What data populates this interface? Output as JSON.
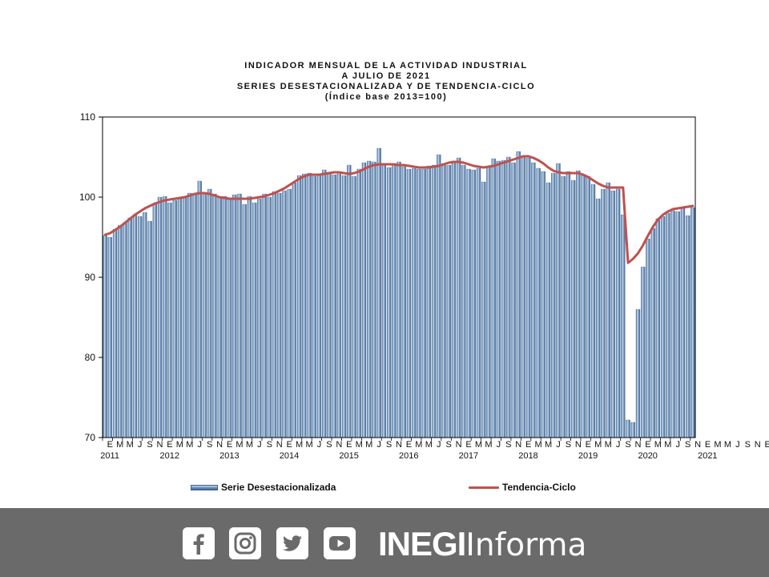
{
  "chart_data": {
    "type": "bar",
    "title_lines": [
      "INDICADOR MENSUAL DE LA ACTIVIDAD INDUSTRIAL",
      "A JULIO DE 2021",
      "SERIES DESESTACIONALIZADA  Y DE TENDENCIA-CICLO",
      "(Índice base 2013=100)"
    ],
    "ylim": [
      70,
      110
    ],
    "yticks": [
      "70",
      "80",
      "90",
      "100",
      "110"
    ],
    "month_labels": [
      "E",
      "M",
      "M",
      "J",
      "S",
      "N",
      "E",
      "M",
      "M",
      "J",
      "S",
      "N",
      "E",
      "M",
      "M",
      "J",
      "S",
      "N",
      "E",
      "M",
      "M",
      "J",
      "S",
      "N",
      "E",
      "M",
      "M",
      "J",
      "S",
      "N",
      "E",
      "M",
      "M",
      "J",
      "S",
      "N",
      "E",
      "M",
      "M",
      "J",
      "S",
      "N",
      "E",
      "M",
      "M",
      "J",
      "S",
      "N",
      "E",
      "M",
      "M",
      "J",
      "S",
      "N",
      "E",
      "M",
      "M",
      "J",
      "S",
      "N",
      "E",
      "M",
      "M",
      "J",
      "S",
      "N",
      "E",
      "M",
      "M",
      "J"
    ],
    "year_labels": [
      "2011",
      "2012",
      "2013",
      "2014",
      "2015",
      "2016",
      "2017",
      "2018",
      "2019",
      "2020",
      "2021"
    ],
    "series": [
      {
        "name": "Serie Desestacionalizada",
        "kind": "bar",
        "values": [
          95.2,
          95.0,
          96.0,
          96.5,
          96.8,
          97.4,
          97.8,
          97.6,
          98.1,
          97.0,
          99.2,
          100.0,
          100.1,
          99.3,
          99.6,
          99.8,
          100.0,
          100.5,
          100.4,
          102.0,
          100.5,
          101.0,
          100.4,
          100.0,
          100.1,
          99.7,
          100.3,
          100.4,
          99.1,
          100.1,
          99.3,
          99.8,
          100.4,
          100.0,
          100.7,
          100.5,
          100.8,
          101.0,
          101.8,
          102.7,
          102.9,
          103.0,
          102.6,
          102.8,
          103.4,
          103.1,
          102.8,
          102.9,
          102.7,
          104.0,
          102.6,
          103.5,
          104.3,
          104.5,
          104.4,
          106.1,
          104.0,
          103.7,
          104.0,
          104.4,
          103.8,
          103.5,
          103.6,
          103.5,
          103.5,
          103.9,
          104.0,
          105.3,
          104.2,
          104.0,
          104.5,
          104.9,
          104.0,
          103.5,
          103.4,
          103.6,
          101.9,
          103.8,
          104.8,
          104.5,
          104.6,
          105.0,
          104.3,
          105.7,
          105.2,
          104.9,
          104.3,
          103.6,
          103.2,
          101.8,
          103.0,
          104.2,
          102.6,
          103.2,
          102.1,
          103.3,
          102.7,
          102.6,
          101.6,
          99.8,
          101.0,
          101.8,
          100.8,
          101.0,
          97.8,
          72.2,
          71.9,
          86.0,
          91.3,
          94.8,
          96.1,
          97.3,
          97.6,
          98.0,
          98.3,
          98.2,
          98.6,
          97.7,
          98.7
        ]
      },
      {
        "name": "Tendencia-Ciclo",
        "kind": "line",
        "values": [
          95.3,
          95.5,
          95.9,
          96.3,
          96.8,
          97.3,
          97.8,
          98.2,
          98.6,
          98.9,
          99.2,
          99.4,
          99.6,
          99.7,
          99.8,
          99.9,
          100.0,
          100.2,
          100.4,
          100.5,
          100.5,
          100.4,
          100.2,
          100.0,
          99.9,
          99.8,
          99.8,
          99.8,
          99.8,
          99.8,
          99.9,
          100.0,
          100.1,
          100.3,
          100.5,
          100.8,
          101.1,
          101.5,
          101.9,
          102.3,
          102.6,
          102.8,
          102.8,
          102.8,
          102.9,
          103.0,
          103.1,
          103.1,
          103.0,
          102.9,
          103.0,
          103.2,
          103.5,
          103.8,
          104.0,
          104.1,
          104.1,
          104.1,
          104.1,
          104.0,
          104.0,
          103.9,
          103.8,
          103.7,
          103.7,
          103.7,
          103.8,
          103.9,
          104.1,
          104.3,
          104.4,
          104.4,
          104.3,
          104.1,
          103.9,
          103.8,
          103.7,
          103.8,
          103.9,
          104.1,
          104.3,
          104.5,
          104.7,
          104.9,
          105.1,
          105.1,
          104.9,
          104.6,
          104.2,
          103.7,
          103.3,
          103.1,
          103.0,
          103.0,
          103.0,
          103.0,
          102.8,
          102.5,
          102.1,
          101.7,
          101.4,
          101.2,
          101.2,
          101.2,
          101.2,
          91.8,
          92.3,
          93.0,
          94.0,
          95.2,
          96.3,
          97.2,
          97.8,
          98.2,
          98.5,
          98.6,
          98.7,
          98.8,
          98.9
        ]
      }
    ]
  },
  "legend": {
    "bar_label": "Serie Desestacionalizada",
    "line_label": "Tendencia-Ciclo"
  },
  "colors": {
    "bar_light": "#c9d9ea",
    "bar_mid": "#6f93bd",
    "bar_dark": "#3d6390",
    "trend_line": "#c0504d",
    "footer_bg": "#6a6a6a"
  },
  "footer": {
    "icons": [
      "facebook-icon",
      "instagram-icon",
      "twitter-icon",
      "youtube-icon"
    ],
    "brand_strong": "INEGI",
    "brand_light": "Informa"
  }
}
